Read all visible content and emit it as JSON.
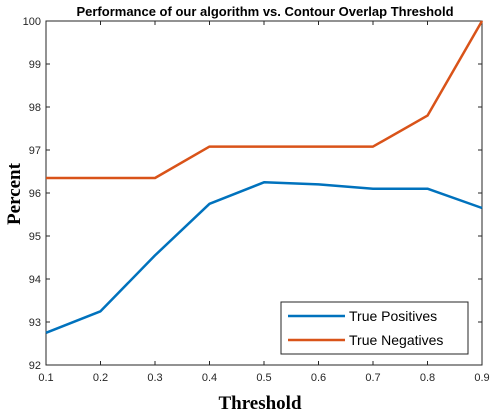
{
  "chart_data": {
    "type": "line",
    "title": "Performance of our algorithm vs. Contour Overlap Threshold",
    "xlabel": "Threshold",
    "ylabel": "Percent",
    "x": [
      0.1,
      0.2,
      0.3,
      0.4,
      0.5,
      0.6,
      0.7,
      0.8,
      0.9
    ],
    "xlim": [
      0.1,
      0.9
    ],
    "ylim": [
      92,
      100
    ],
    "xticks": [
      "0.1",
      "0.2",
      "0.3",
      "0.4",
      "0.5",
      "0.6",
      "0.7",
      "0.8",
      "0.9"
    ],
    "yticks": [
      "92",
      "93",
      "94",
      "95",
      "96",
      "97",
      "98",
      "99",
      "100"
    ],
    "grid": false,
    "legend_position": "bottom-right",
    "series": [
      {
        "name": "True Positives",
        "color": "#0072BD",
        "values": [
          92.75,
          93.25,
          94.55,
          95.75,
          96.25,
          96.2,
          96.1,
          96.1,
          95.65
        ]
      },
      {
        "name": "True Negatives",
        "color": "#D95319",
        "values": [
          96.35,
          96.35,
          96.35,
          97.08,
          97.08,
          97.08,
          97.08,
          97.8,
          100
        ]
      }
    ]
  }
}
